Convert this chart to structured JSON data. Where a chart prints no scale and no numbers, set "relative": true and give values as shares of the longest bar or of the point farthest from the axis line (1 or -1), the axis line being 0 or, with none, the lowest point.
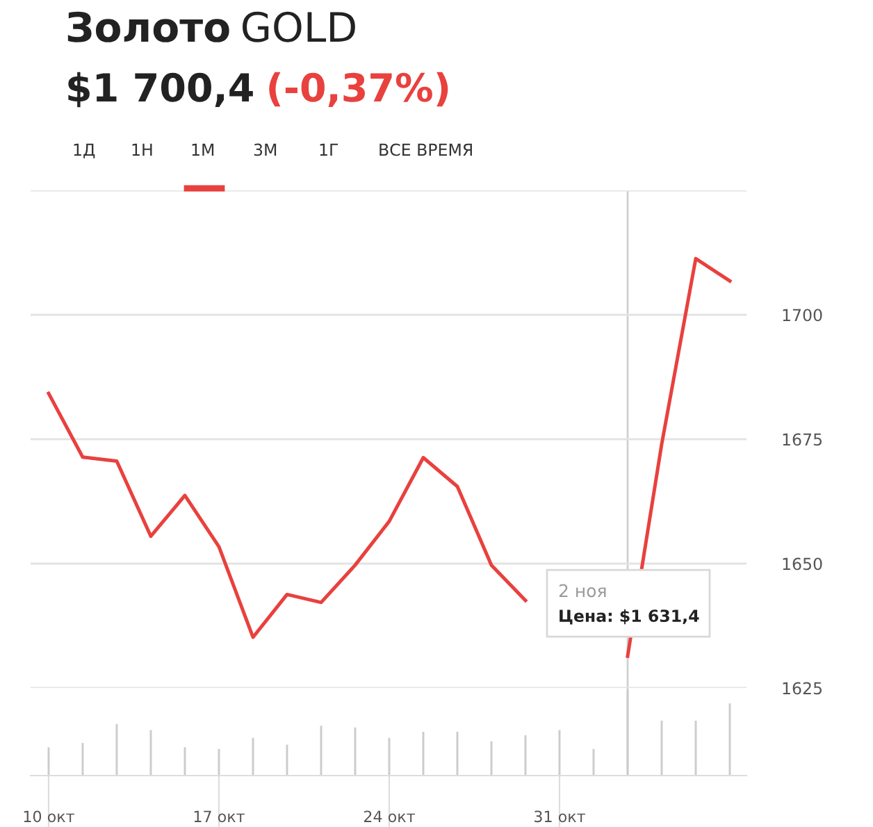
{
  "chart_data": [
    {
      "type": "line",
      "title": "Золото GOLD",
      "subtitle": "$1 700,4 (-0,37%)",
      "categories": [
        "10 окт",
        null,
        null,
        null,
        null,
        "17 окт",
        null,
        null,
        null,
        null,
        "24 окт",
        null,
        null,
        null,
        null,
        "31 окт",
        null,
        null,
        null,
        null,
        null
      ],
      "series": [
        {
          "color": "#e8413e",
          "values": [
            1684.2,
            1671.4,
            1670.6,
            1655.5,
            1663.7,
            1653.4,
            1635.2,
            1643.8,
            1642.2,
            1649.7,
            1658.5,
            1671.3,
            1665.5,
            1649.7,
            1642.6,
            null,
            null,
            1631.4,
            1674.0,
            1711.3,
            1706.8
          ]
        }
      ],
      "ylim": [
        1625,
        1725
      ],
      "yticks": [
        1625,
        1650,
        1675,
        1700,
        {
          "value": 1725,
          "label": null
        }
      ],
      "grid": "y",
      "legend": false,
      "annotations": [
        "1Д",
        "1Н",
        "1М",
        "3М",
        "1Г",
        "ВСЕ ВРЕМЯ",
        "2 ноя\nЦена: $1 631,4"
      ]
    },
    {
      "type": "bar",
      "relative": true,
      "categories": [
        null,
        null,
        null,
        null,
        null,
        null,
        null,
        null,
        null,
        null,
        null,
        null,
        null,
        null,
        null,
        null,
        null,
        null,
        null,
        null,
        null
      ],
      "series": [
        {
          "color": "#cccccc",
          "values": [
            0.33,
            0.38,
            0.6,
            0.53,
            0.33,
            0.31,
            0.44,
            0.36,
            0.58,
            0.56,
            0.44,
            0.51,
            0.51,
            0.4,
            0.47,
            0.53,
            0.31,
            1,
            0.64,
            0.64,
            0.84
          ]
        }
      ]
    }
  ]
}
